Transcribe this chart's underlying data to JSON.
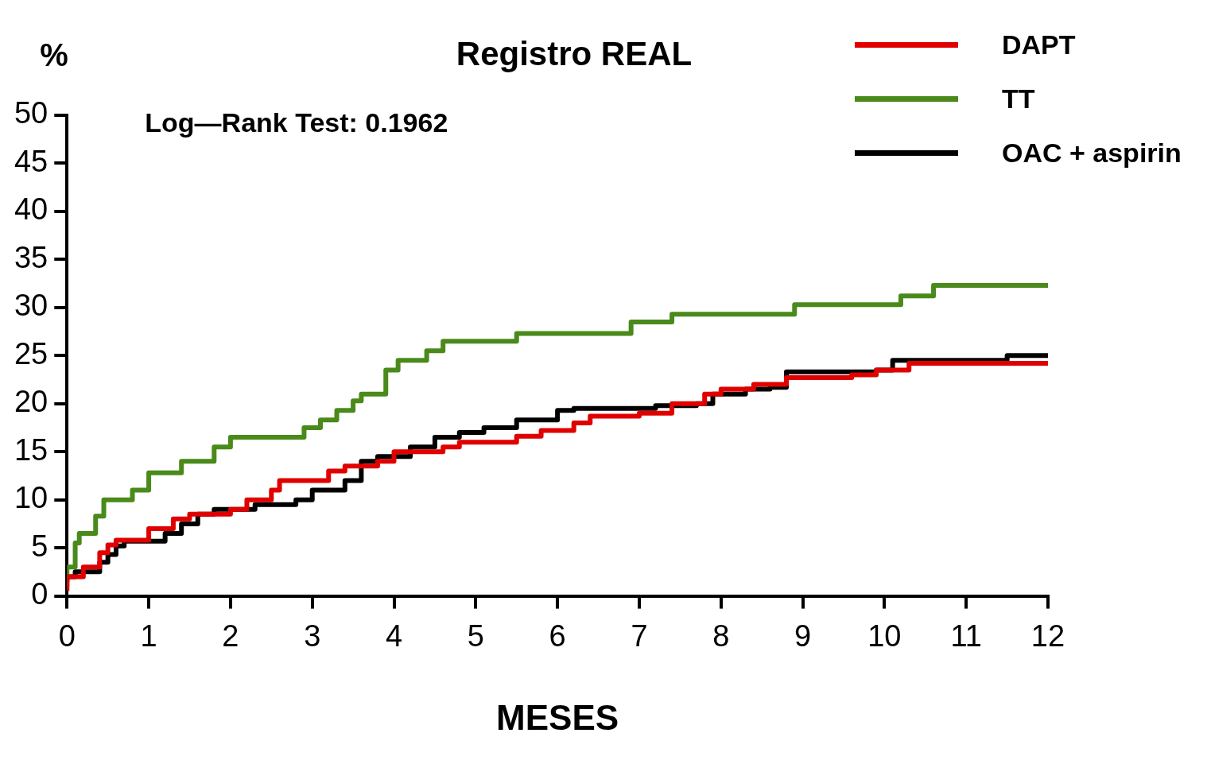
{
  "chart_data": {
    "type": "step",
    "title": "Registro REAL",
    "xlabel": "MESES",
    "ylabel": "%",
    "annotations": [
      "Log—Rank Test: 0.1962"
    ],
    "xlim": [
      0,
      12
    ],
    "xticks": [
      0,
      1,
      2,
      3,
      4,
      5,
      6,
      7,
      8,
      9,
      10,
      11,
      12
    ],
    "ylim": [
      0,
      50
    ],
    "yticks": [
      0,
      5,
      10,
      15,
      20,
      25,
      30,
      35,
      40,
      45,
      50
    ],
    "grid": false,
    "legend": "top right",
    "line_style": "solid",
    "marker": "none",
    "series": [
      {
        "name": "DAPT",
        "color": "#e00000",
        "x": [
          0,
          0.2,
          0.4,
          0.5,
          0.6,
          1.0,
          1.3,
          1.5,
          2.0,
          2.2,
          2.5,
          2.6,
          3.2,
          3.4,
          3.8,
          4.0,
          4.6,
          4.8,
          5.5,
          5.8,
          6.2,
          6.4,
          7.0,
          7.4,
          7.8,
          8.0,
          8.4,
          8.8,
          9.6,
          9.9,
          10.3,
          10.5,
          11.8,
          12
        ],
        "values": [
          0.5,
          2,
          3,
          4.5,
          5.3,
          5.8,
          7,
          8,
          8.5,
          9,
          10,
          11,
          12,
          13,
          13.5,
          14,
          15,
          15.5,
          16,
          16.6,
          17.2,
          18,
          18.7,
          19,
          20,
          21,
          21.5,
          22,
          22.7,
          23,
          23.5,
          24.2,
          24.2,
          24.2
        ]
      },
      {
        "name": "TT",
        "color": "#4a8a1a",
        "x": [
          0,
          0.1,
          0.15,
          0.35,
          0.45,
          0.8,
          1.0,
          1.4,
          1.8,
          2.0,
          2.9,
          3.1,
          3.3,
          3.5,
          3.6,
          3.9,
          4.05,
          4.4,
          4.6,
          5.5,
          6.9,
          7.4,
          8.9,
          10.2,
          10.6,
          10.8,
          12
        ],
        "values": [
          1,
          3,
          5.5,
          6.5,
          8.3,
          10,
          11,
          12.8,
          14,
          15.5,
          16.5,
          17.5,
          18.3,
          19.3,
          20.3,
          21,
          23.5,
          24.5,
          25.5,
          26.5,
          27.3,
          28.5,
          29.3,
          30.3,
          31.2,
          32.3,
          32.3
        ]
      },
      {
        "name": "OAC + aspirin",
        "color": "#000000",
        "x": [
          0,
          0.1,
          0.4,
          0.5,
          0.6,
          0.7,
          1.2,
          1.4,
          1.6,
          1.8,
          2.3,
          2.8,
          3.0,
          3.4,
          3.6,
          3.8,
          4.2,
          4.5,
          4.8,
          5.1,
          5.5,
          6.0,
          6.2,
          7.2,
          7.7,
          7.9,
          8.3,
          8.6,
          8.8,
          9.9,
          10.1,
          10.3,
          11.5,
          11.7,
          12
        ],
        "values": [
          1.5,
          2,
          2.5,
          3.5,
          4.3,
          5.2,
          5.7,
          6.5,
          7.5,
          8.5,
          9,
          9.5,
          10,
          11,
          12,
          14,
          14.5,
          15.5,
          16.5,
          17,
          17.5,
          18.3,
          19.3,
          19.5,
          19.8,
          20,
          21,
          21.5,
          21.7,
          23.3,
          23.5,
          24.5,
          24.5,
          25,
          25
        ]
      }
    ]
  }
}
